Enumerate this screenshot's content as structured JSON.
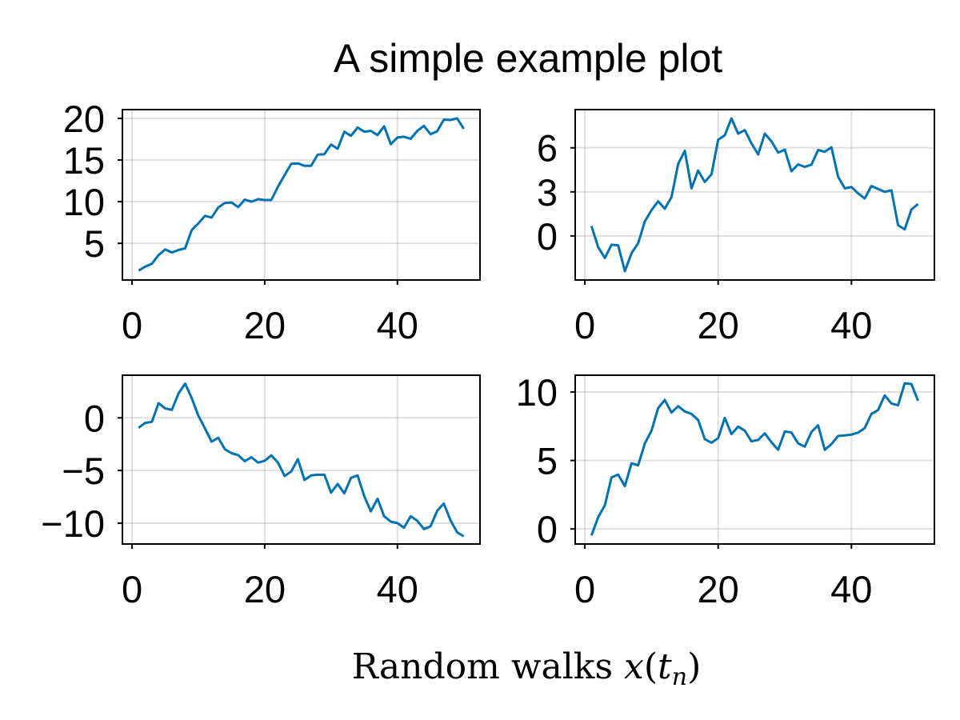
{
  "chart_data": {
    "type": "line",
    "title": "A simple example plot",
    "xlabel": "Random walks x(t_n)",
    "xlabel_parts": {
      "text": "Random walks ",
      "math_var": "x",
      "open": "(",
      "sub_base": "t",
      "sub": "n",
      "close": ")"
    },
    "line_color": "#0072b2",
    "grid": true,
    "panels": [
      {
        "name": "top-left",
        "xlim": [
          -1.45,
          52.45
        ],
        "ylim": [
          0.6,
          21.05
        ],
        "xticks": [
          0,
          20,
          40
        ],
        "xtick_labels": [
          "0",
          "20",
          "40"
        ],
        "yticks": [
          5,
          10,
          15,
          20
        ],
        "ytick_labels": [
          "5",
          "10",
          "15",
          "20"
        ],
        "x": [
          1,
          2,
          3,
          4,
          5,
          6,
          7,
          8,
          9,
          10,
          11,
          12,
          13,
          14,
          15,
          16,
          17,
          18,
          19,
          20,
          21,
          22,
          23,
          24,
          25,
          26,
          27,
          28,
          29,
          30,
          31,
          32,
          33,
          34,
          35,
          36,
          37,
          38,
          39,
          40,
          41,
          42,
          43,
          44,
          45,
          46,
          47,
          48,
          49,
          50
        ],
        "y": [
          1.73,
          2.2,
          2.55,
          3.6,
          4.27,
          3.9,
          4.2,
          4.4,
          6.6,
          7.4,
          8.3,
          8.1,
          9.3,
          9.85,
          9.9,
          9.35,
          10.25,
          10.0,
          10.3,
          10.2,
          10.2,
          11.8,
          13.2,
          14.55,
          14.6,
          14.3,
          14.3,
          15.65,
          15.7,
          16.85,
          16.35,
          18.4,
          17.9,
          18.9,
          18.4,
          18.5,
          18.0,
          19.05,
          16.9,
          17.7,
          17.8,
          17.55,
          18.5,
          19.1,
          18.1,
          18.45,
          19.85,
          19.8,
          20.0,
          18.75
        ]
      },
      {
        "name": "top-right",
        "xlim": [
          -1.45,
          52.45
        ],
        "ylim": [
          -3.0,
          8.6
        ],
        "xticks": [
          0,
          20,
          40
        ],
        "xtick_labels": [
          "0",
          "20",
          "40"
        ],
        "yticks": [
          0,
          3,
          6
        ],
        "ytick_labels": [
          "0",
          "3",
          "6"
        ],
        "x": [
          1,
          2,
          3,
          4,
          5,
          6,
          7,
          8,
          9,
          10,
          11,
          12,
          13,
          14,
          15,
          16,
          17,
          18,
          19,
          20,
          21,
          22,
          23,
          24,
          25,
          26,
          27,
          28,
          29,
          30,
          31,
          32,
          33,
          34,
          35,
          36,
          37,
          38,
          39,
          40,
          41,
          42,
          43,
          44,
          45,
          46,
          47,
          48,
          49,
          50
        ],
        "y": [
          0.67,
          -0.76,
          -1.5,
          -0.6,
          -0.64,
          -2.4,
          -1.18,
          -0.5,
          1.0,
          1.76,
          2.36,
          1.85,
          2.64,
          4.9,
          5.8,
          3.24,
          4.45,
          3.67,
          4.2,
          6.55,
          6.85,
          8.0,
          6.96,
          7.2,
          6.3,
          5.55,
          6.96,
          6.45,
          5.67,
          5.87,
          4.4,
          4.87,
          4.7,
          4.85,
          5.85,
          5.73,
          6.04,
          4.04,
          3.24,
          3.33,
          2.9,
          2.55,
          3.4,
          3.2,
          3.0,
          3.1,
          0.73,
          0.45,
          1.8,
          2.18
        ]
      },
      {
        "name": "bottom-left",
        "xlim": [
          -1.45,
          52.45
        ],
        "ylim": [
          -11.98,
          4.05
        ],
        "xticks": [
          0,
          20,
          40
        ],
        "xtick_labels": [
          "0",
          "20",
          "40"
        ],
        "yticks": [
          -10,
          -5,
          0
        ],
        "ytick_labels": [
          "−10",
          "−5",
          "0"
        ],
        "x": [
          1,
          2,
          3,
          4,
          5,
          6,
          7,
          8,
          9,
          10,
          11,
          12,
          13,
          14,
          15,
          16,
          17,
          18,
          19,
          20,
          21,
          22,
          23,
          24,
          25,
          26,
          27,
          28,
          29,
          30,
          31,
          32,
          33,
          34,
          35,
          36,
          37,
          38,
          39,
          40,
          41,
          42,
          43,
          44,
          45,
          46,
          47,
          48,
          49,
          50
        ],
        "y": [
          -0.94,
          -0.48,
          -0.38,
          1.4,
          0.9,
          0.76,
          2.3,
          3.26,
          1.86,
          0.2,
          -1.0,
          -2.26,
          -1.88,
          -2.98,
          -3.36,
          -3.54,
          -4.12,
          -3.74,
          -4.25,
          -4.07,
          -3.56,
          -4.25,
          -5.52,
          -5.09,
          -3.92,
          -5.9,
          -5.47,
          -5.4,
          -5.4,
          -7.1,
          -6.28,
          -7.18,
          -5.7,
          -5.47,
          -7.43,
          -8.88,
          -7.68,
          -9.34,
          -9.85,
          -10.0,
          -10.43,
          -9.34,
          -9.77,
          -10.56,
          -10.3,
          -8.83,
          -8.14,
          -9.72,
          -10.87,
          -11.25
        ]
      },
      {
        "name": "bottom-right",
        "xlim": [
          -1.45,
          52.45
        ],
        "ylim": [
          -1.1,
          11.23
        ],
        "xticks": [
          0,
          20,
          40
        ],
        "xtick_labels": [
          "0",
          "20",
          "40"
        ],
        "yticks": [
          0,
          5,
          10
        ],
        "ytick_labels": [
          "0",
          "5",
          "10"
        ],
        "x": [
          1,
          2,
          3,
          4,
          5,
          6,
          7,
          8,
          9,
          10,
          11,
          12,
          13,
          14,
          15,
          16,
          17,
          18,
          19,
          20,
          21,
          22,
          23,
          24,
          25,
          26,
          27,
          28,
          29,
          30,
          31,
          32,
          33,
          34,
          35,
          36,
          37,
          38,
          39,
          40,
          41,
          42,
          43,
          44,
          45,
          46,
          47,
          48,
          49,
          50
        ],
        "y": [
          -0.47,
          0.86,
          1.73,
          3.77,
          3.97,
          3.13,
          4.79,
          4.65,
          6.25,
          7.18,
          8.83,
          9.42,
          8.5,
          8.97,
          8.58,
          8.4,
          7.96,
          6.56,
          6.3,
          6.63,
          8.11,
          6.93,
          7.47,
          7.18,
          6.4,
          6.5,
          6.98,
          6.34,
          5.78,
          7.12,
          7.04,
          6.25,
          6.01,
          7.08,
          7.57,
          5.78,
          6.2,
          6.79,
          6.83,
          6.89,
          7.04,
          7.37,
          8.4,
          8.68,
          9.75,
          9.16,
          9.03,
          10.64,
          10.58,
          9.36
        ]
      }
    ]
  }
}
